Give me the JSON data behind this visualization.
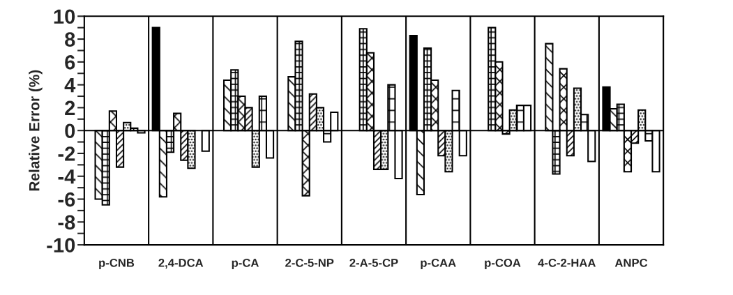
{
  "chart_data": {
    "type": "bar",
    "ylabel": "Relative Error (%)",
    "categories": [
      "p-CNB",
      "2,4-DCA",
      "p-CA",
      "2-C-5-NP",
      "2-A-5-CP",
      "p-CAA",
      "p-COA",
      "4-C-2-HAA",
      "ANPC"
    ],
    "series": [
      {
        "color": "#000000",
        "values": [
          null,
          9.0,
          null,
          null,
          null,
          8.3,
          null,
          null,
          3.8
        ]
      },
      {
        "color": "#000000",
        "values": [
          -6.0,
          -5.8,
          4.4,
          4.7,
          null,
          -5.6,
          null,
          7.6,
          1.9
        ]
      },
      {
        "color": "#000000",
        "values": [
          -6.5,
          -1.9,
          5.3,
          7.8,
          8.9,
          7.2,
          9.0,
          -3.8,
          2.3
        ]
      },
      {
        "color": "#000000",
        "values": [
          1.7,
          1.5,
          3.0,
          -5.7,
          6.8,
          4.4,
          6.0,
          5.4,
          -3.6
        ]
      },
      {
        "color": "#000000",
        "values": [
          -3.2,
          -2.6,
          2.0,
          3.2,
          -3.4,
          -2.2,
          -0.3,
          -2.2,
          -1.1
        ]
      },
      {
        "color": "#000000",
        "values": [
          0.7,
          -3.3,
          -3.2,
          2.0,
          -3.4,
          -3.6,
          1.8,
          3.7,
          1.8
        ]
      },
      {
        "color": "#000000",
        "values": [
          0.2,
          null,
          3.0,
          -1.0,
          4.0,
          3.5,
          2.2,
          1.4,
          -0.9
        ]
      },
      {
        "color": "#000000",
        "values": [
          -0.2,
          -1.8,
          -2.4,
          1.6,
          -4.2,
          -2.2,
          2.2,
          -2.7,
          -3.6
        ]
      }
    ],
    "ylim": [
      -10,
      10
    ],
    "yticks": [
      -10,
      {
        "value": -9,
        "label": null
      },
      -8,
      {
        "value": -7,
        "label": null
      },
      -6,
      {
        "value": -5,
        "label": null
      },
      -4,
      {
        "value": -3,
        "label": null
      },
      -2,
      {
        "value": -1,
        "label": null
      },
      0,
      {
        "value": 1,
        "label": null
      },
      2,
      {
        "value": 3,
        "label": null
      },
      4,
      {
        "value": 5,
        "label": null
      },
      6,
      {
        "value": 7,
        "label": null
      },
      8,
      {
        "value": 9,
        "label": null
      },
      10
    ],
    "ref_lines": [
      {
        "axis": "y",
        "value": 0,
        "color": "#000000"
      }
    ],
    "grid": false,
    "legend": false
  }
}
